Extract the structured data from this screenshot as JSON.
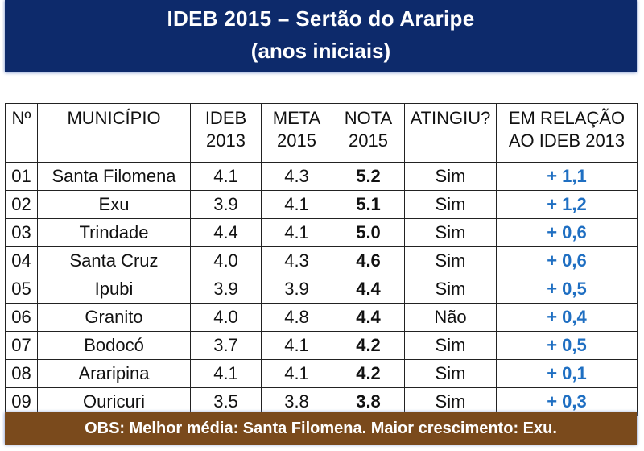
{
  "title": {
    "line1": "IDEB 2015 – Sertão do Araripe",
    "line2": "(anos iniciais)"
  },
  "table": {
    "headers": [
      [
        "Nº",
        ""
      ],
      [
        "MUNICÍPIO",
        ""
      ],
      [
        "IDEB",
        "2013"
      ],
      [
        "META",
        "2015"
      ],
      [
        "NOTA",
        "2015"
      ],
      [
        "ATINGIU?",
        ""
      ],
      [
        "EM RELAÇÃO",
        "AO IDEB 2013"
      ]
    ],
    "rows": [
      [
        "01",
        "Santa Filomena",
        "4.1",
        "4.3",
        "5.2",
        "Sim",
        "+ 1,1"
      ],
      [
        "02",
        "Exu",
        "3.9",
        "4.1",
        "5.1",
        "Sim",
        "+ 1,2"
      ],
      [
        "03",
        "Trindade",
        "4.4",
        "4.1",
        "5.0",
        "Sim",
        "+ 0,6"
      ],
      [
        "04",
        "Santa Cruz",
        "4.0",
        "4.3",
        "4.6",
        "Sim",
        "+ 0,6"
      ],
      [
        "05",
        "Ipubi",
        "3.9",
        "3.9",
        "4.4",
        "Sim",
        "+ 0,5"
      ],
      [
        "06",
        "Granito",
        "4.0",
        "4.8",
        "4.4",
        "Não",
        "+ 0,4"
      ],
      [
        "07",
        "Bodocó",
        "3.7",
        "4.1",
        "4.2",
        "Sim",
        "+ 0,5"
      ],
      [
        "08",
        "Araripina",
        "4.1",
        "4.1",
        "4.2",
        "Sim",
        "+ 0,1"
      ],
      [
        "09",
        "Ouricuri",
        "3.5",
        "3.8",
        "3.8",
        "Sim",
        "+ 0,3"
      ]
    ]
  },
  "obs": "OBS: Melhor média: Santa Filomena. Maior crescimento: Exu.",
  "colors": {
    "title_bg": "#0d2a6b",
    "obs_bg": "#7a4a1c",
    "delta_text": "#1f6fc2"
  }
}
